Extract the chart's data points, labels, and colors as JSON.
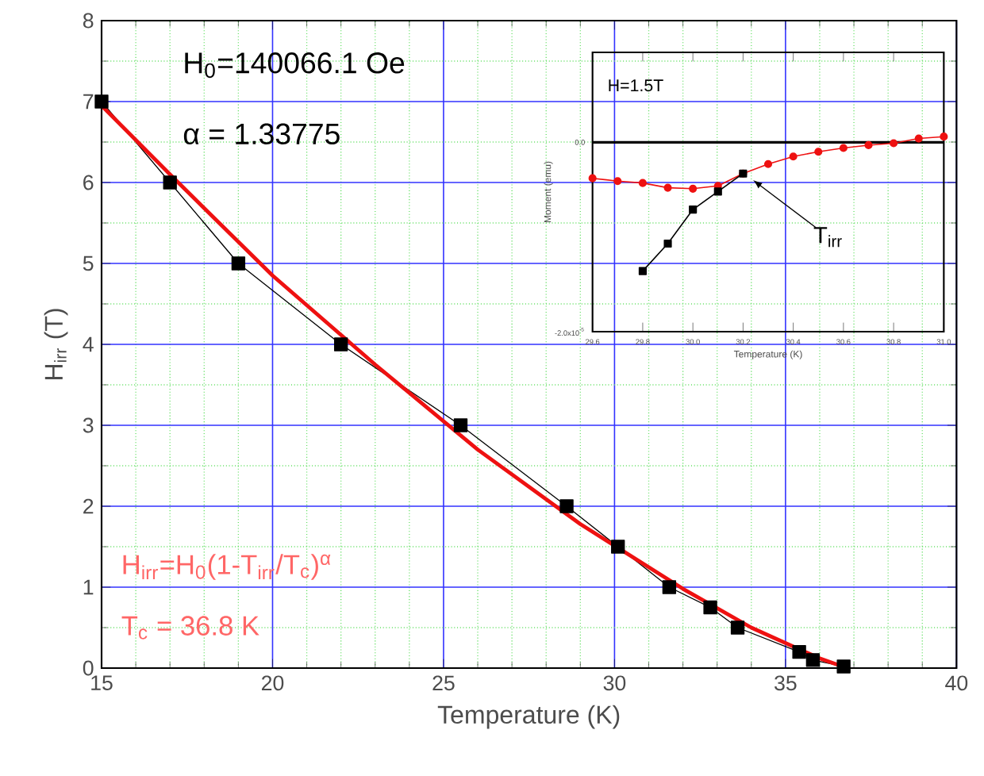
{
  "chart_data": [
    {
      "type": "line",
      "xlabel": "Temperature (K)",
      "ylabel": "H$_{irr}$ (T)",
      "xlim": [
        15,
        40
      ],
      "ylim": [
        0,
        8
      ],
      "xticks": [
        15,
        {
          "value": 16,
          "label": null
        },
        {
          "value": 17,
          "label": null
        },
        {
          "value": 18,
          "label": null
        },
        {
          "value": 19,
          "label": null
        },
        20,
        {
          "value": 21,
          "label": null
        },
        {
          "value": 22,
          "label": null
        },
        {
          "value": 23,
          "label": null
        },
        {
          "value": 24,
          "label": null
        },
        25,
        {
          "value": 26,
          "label": null
        },
        {
          "value": 27,
          "label": null
        },
        {
          "value": 28,
          "label": null
        },
        {
          "value": 29,
          "label": null
        },
        30,
        {
          "value": 31,
          "label": null
        },
        {
          "value": 32,
          "label": null
        },
        {
          "value": 33,
          "label": null
        },
        {
          "value": 34,
          "label": null
        },
        35,
        {
          "value": 36,
          "label": null
        },
        {
          "value": 37,
          "label": null
        },
        {
          "value": 38,
          "label": null
        },
        {
          "value": 39,
          "label": null
        },
        40
      ],
      "yticks": [
        0,
        {
          "value": 0.5,
          "label": null
        },
        1,
        {
          "value": 1.5,
          "label": null
        },
        2,
        {
          "value": 2.5,
          "label": null
        },
        3,
        {
          "value": 3.5,
          "label": null
        },
        4,
        {
          "value": 4.5,
          "label": null
        },
        5,
        {
          "value": 5.5,
          "label": null
        },
        6,
        {
          "value": 6.5,
          "label": null
        },
        7,
        {
          "value": 7.5,
          "label": null
        },
        8
      ],
      "grid": true,
      "series": [
        {
          "color": "#000000",
          "marker": "square",
          "x": [
            15,
            17,
            19,
            22,
            25.5,
            28.6,
            30.1,
            31.6,
            32.8,
            33.6,
            35.4,
            35.8,
            36.7
          ],
          "values": [
            7,
            6,
            5,
            4,
            3,
            2,
            1.5,
            1.0,
            0.75,
            0.5,
            0.2,
            0.1,
            0.02
          ]
        },
        {
          "color": "#ee1111",
          "marker": "none",
          "x": [
            15,
            17,
            20,
            23,
            26,
            29,
            32,
            34,
            36,
            36.8
          ],
          "values": [
            6.95,
            6.1,
            4.85,
            3.75,
            2.7,
            1.78,
            0.98,
            0.5,
            0.12,
            0
          ]
        }
      ],
      "annotations": [
        "H$_{0}$=140066.1 Oe",
        "α = 1.33775",
        "H$_{irr}$=H$_{0}$(1-T$_{irr}$/T$_{c}$)$^{α}$",
        "T$_{c}$ = 36.8 K"
      ]
    },
    {
      "type": "line",
      "xlabel": "Temperature (K)",
      "ylabel": "Moment (emu)",
      "xlim": [
        29.6,
        31.0
      ],
      "ylim": [
        -2e-05,
        9.5e-06
      ],
      "xticks": [
        {
          "value": 29.6,
          "label": "29.6"
        },
        {
          "value": 29.8,
          "label": "29.8"
        },
        {
          "value": 30.0,
          "label": "30.0"
        },
        {
          "value": 30.2,
          "label": "30.2"
        },
        {
          "value": 30.4,
          "label": "30.4"
        },
        {
          "value": 30.6,
          "label": "30.6"
        },
        {
          "value": 30.8,
          "label": "30.8"
        },
        {
          "value": 31.0,
          "label": "31.0"
        }
      ],
      "yticks": [
        {
          "value": -2e-05,
          "label": "-2.0x10$^{-5}$"
        },
        {
          "value": 0,
          "label": "0.0"
        }
      ],
      "series": [
        {
          "color": "#ee1111",
          "marker": "circle",
          "x": [
            29.6,
            29.7,
            29.8,
            29.9,
            30.0,
            30.1,
            30.2,
            30.3,
            30.4,
            30.5,
            30.6,
            30.7,
            30.8,
            30.9,
            31.0
          ],
          "values": [
            -3.8e-06,
            -4.1e-06,
            -4.3e-06,
            -4.8e-06,
            -4.9e-06,
            -4.6e-06,
            -3.3e-06,
            -2.3e-06,
            -1.5e-06,
            -1e-06,
            -6e-07,
            -3e-07,
            -1e-07,
            4e-07,
            6e-07
          ]
        },
        {
          "color": "#000000",
          "marker": "square",
          "x": [
            29.8,
            29.9,
            30.0,
            30.1,
            30.2
          ],
          "values": [
            -1.36e-05,
            -1.07e-05,
            -7.1e-06,
            -5.2e-06,
            -3.3e-06
          ]
        }
      ],
      "ref_lines": [
        {
          "axis": "y",
          "value": 0,
          "color": "#000000"
        }
      ],
      "annotations": [
        "H=1.5T",
        {
          "text": "T$_{irr}$",
          "x": 30.24,
          "y": -4e-06
        }
      ]
    }
  ]
}
